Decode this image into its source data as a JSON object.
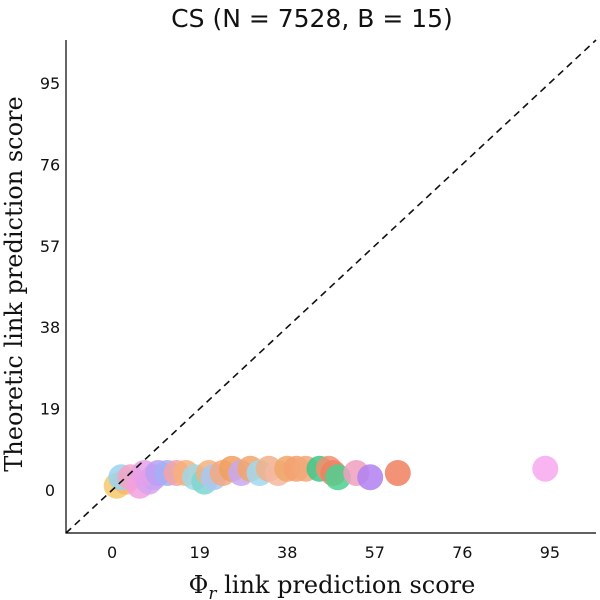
{
  "chart_data": {
    "type": "scatter",
    "title": "CS (N = 7528, B = 15)",
    "xlabel": "Φ_r link prediction score",
    "xlabel_main": "Φ",
    "xlabel_sub": "r",
    "xlabel_rest": " link prediction score",
    "ylabel": "Theoretic link prediction score",
    "xticks": [
      "0",
      "19",
      "38",
      "57",
      "76",
      "95"
    ],
    "yticks": [
      "0",
      "19",
      "38",
      "57",
      "76",
      "95"
    ],
    "xlim": [
      -10,
      105
    ],
    "ylim": [
      -10,
      105
    ],
    "grid": false,
    "reference_line": "y = x (dashed)",
    "points": [
      {
        "x": 1,
        "y": 1,
        "color": "#f7c96a"
      },
      {
        "x": 3,
        "y": 2,
        "color": "#f5b86e"
      },
      {
        "x": 2,
        "y": 3,
        "color": "#9bd3f0"
      },
      {
        "x": 4,
        "y": 3,
        "color": "#f4a3c7"
      },
      {
        "x": 6,
        "y": 1,
        "color": "#f2a0e0"
      },
      {
        "x": 8,
        "y": 2,
        "color": "#d7a3f0"
      },
      {
        "x": 9,
        "y": 3,
        "color": "#c9a3f5"
      },
      {
        "x": 7,
        "y": 4,
        "color": "#e6a0e8"
      },
      {
        "x": 10,
        "y": 4,
        "color": "#b8a0f5"
      },
      {
        "x": 12,
        "y": 4,
        "color": "#a3b0f5"
      },
      {
        "x": 14,
        "y": 4,
        "color": "#f5a3a3"
      },
      {
        "x": 16,
        "y": 4,
        "color": "#f7b07a"
      },
      {
        "x": 18,
        "y": 3,
        "color": "#9fd8e8"
      },
      {
        "x": 20,
        "y": 2,
        "color": "#7fd6d0"
      },
      {
        "x": 21,
        "y": 4,
        "color": "#f3b27c"
      },
      {
        "x": 22,
        "y": 3,
        "color": "#a8c8f5"
      },
      {
        "x": 24,
        "y": 4,
        "color": "#f5a880"
      },
      {
        "x": 26,
        "y": 5,
        "color": "#f0a060"
      },
      {
        "x": 28,
        "y": 4,
        "color": "#c8a8f0"
      },
      {
        "x": 30,
        "y": 5,
        "color": "#f2a66a"
      },
      {
        "x": 32,
        "y": 4,
        "color": "#a0d8f0"
      },
      {
        "x": 34,
        "y": 5,
        "color": "#f1b08a"
      },
      {
        "x": 36,
        "y": 4,
        "color": "#f5b8a0"
      },
      {
        "x": 38,
        "y": 5,
        "color": "#f0a868"
      },
      {
        "x": 40,
        "y": 5,
        "color": "#f4a070"
      },
      {
        "x": 42,
        "y": 5,
        "color": "#f2a878"
      },
      {
        "x": 45,
        "y": 5,
        "color": "#3cc88a"
      },
      {
        "x": 47,
        "y": 5,
        "color": "#f09070"
      },
      {
        "x": 48,
        "y": 4,
        "color": "#f28060"
      },
      {
        "x": 49,
        "y": 3,
        "color": "#4cd090"
      },
      {
        "x": 53,
        "y": 4,
        "color": "#f0a0c0"
      },
      {
        "x": 56,
        "y": 3,
        "color": "#b080f0"
      },
      {
        "x": 62,
        "y": 4,
        "color": "#f08060"
      },
      {
        "x": 94,
        "y": 5,
        "color": "#f7a8f0"
      }
    ]
  }
}
